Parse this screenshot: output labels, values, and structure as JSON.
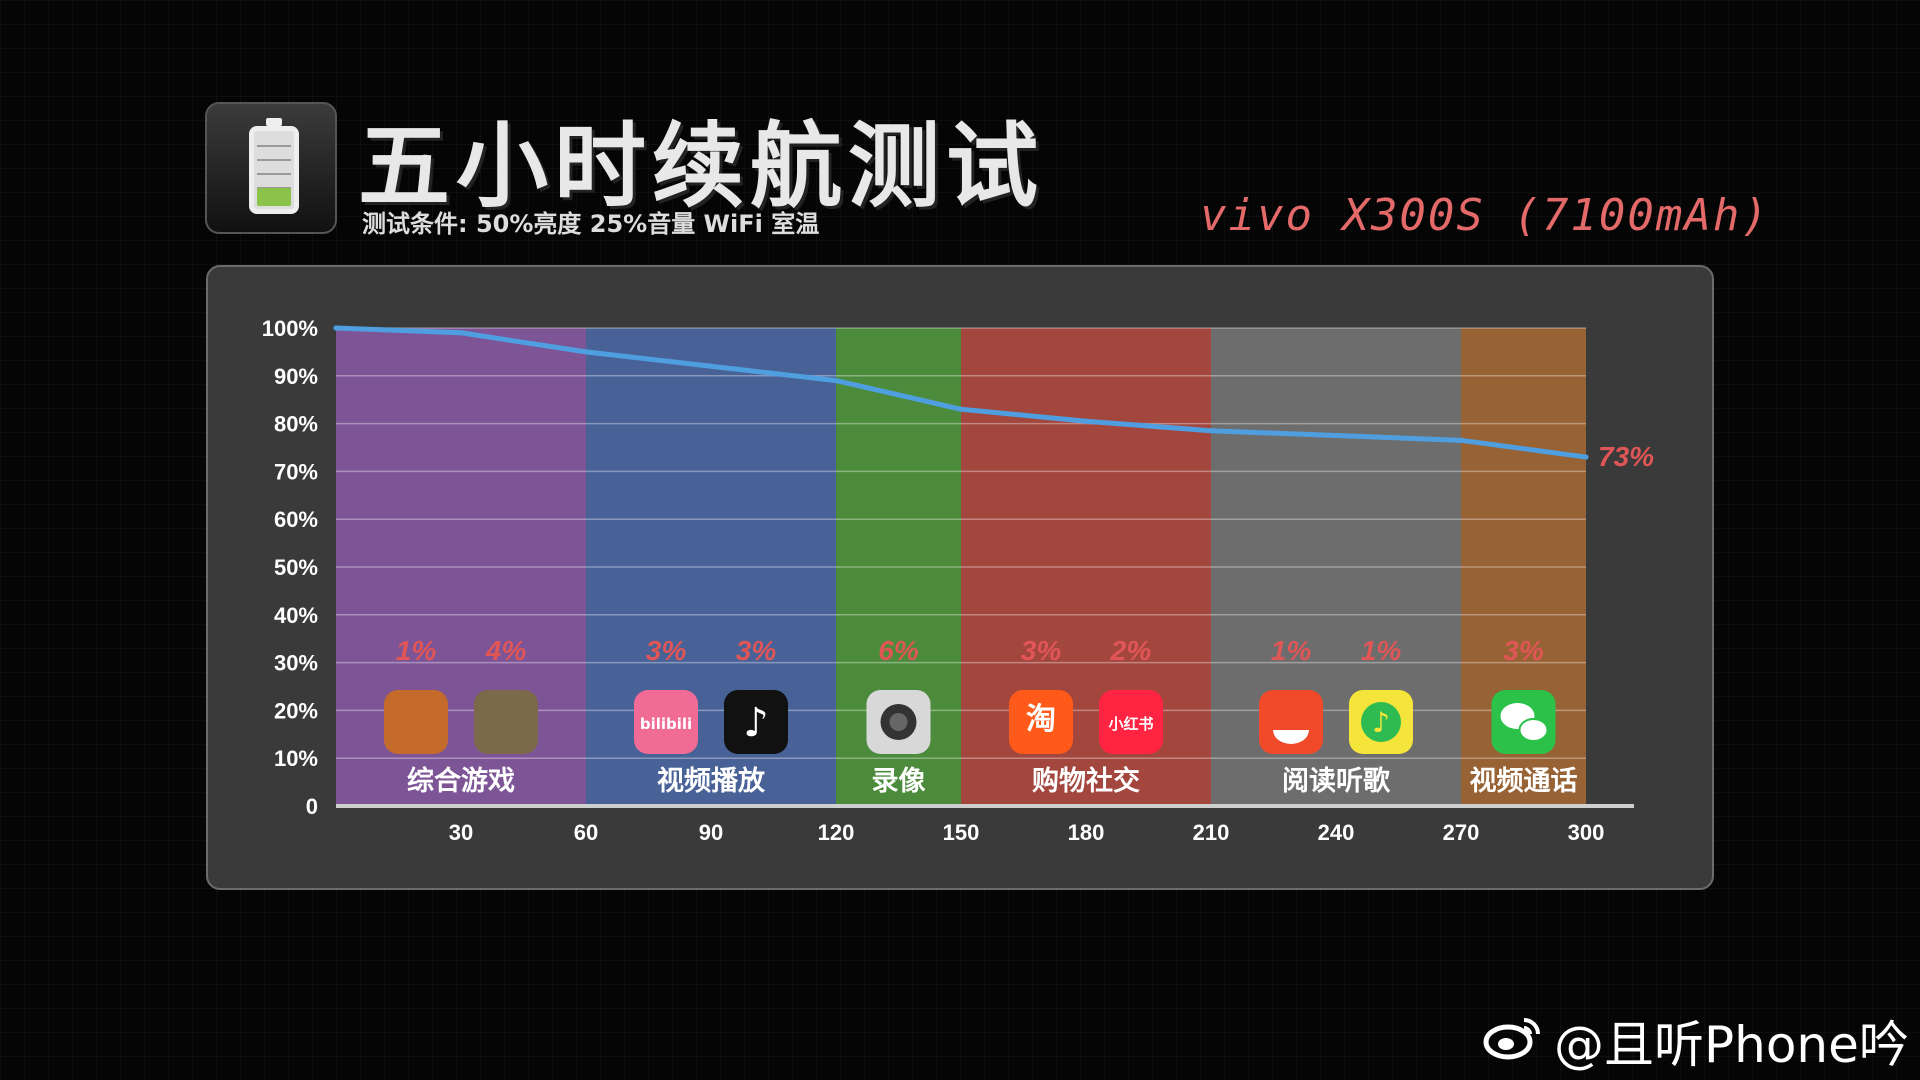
{
  "header": {
    "title": "五小时续航测试",
    "conditions": "测试条件: 50%亮度 25%音量 WiFi 室温",
    "device": "vivo X300S (7100mAh)"
  },
  "watermark": {
    "handle": "@且听Phone吟",
    "icon": "weibo-icon"
  },
  "colors": {
    "line": "#4f9ee0",
    "accent": "#e05555",
    "segments": [
      "#8a5aa8",
      "#4b6aa8",
      "#4f9a3c",
      "#b64a40",
      "#777777",
      "#a86a34"
    ]
  },
  "chart_data": {
    "type": "line",
    "x": [
      0,
      30,
      60,
      90,
      120,
      150,
      180,
      210,
      240,
      270,
      300
    ],
    "series": [
      {
        "values": [
          100,
          99,
          95,
          92,
          89,
          83,
          80.5,
          78.5,
          77.5,
          76.5,
          73
        ]
      }
    ],
    "end_label": "73%",
    "xticks": [
      30,
      60,
      90,
      120,
      150,
      180,
      210,
      240,
      270,
      300
    ],
    "yticks": [
      "0",
      "10%",
      "20%",
      "30%",
      "40%",
      "50%",
      "60%",
      "70%",
      "80%",
      "90%",
      "100%"
    ],
    "xlim": [
      0,
      300
    ],
    "ylim": [
      0,
      100
    ],
    "grid": true,
    "segments": [
      {
        "label": "综合游戏",
        "x0": 0,
        "x1": 60,
        "apps": [
          {
            "icon": "honor-of-kings-icon",
            "drain": "1%"
          },
          {
            "icon": "pubg-icon",
            "drain": "4%"
          }
        ]
      },
      {
        "label": "视频播放",
        "x0": 60,
        "x1": 120,
        "apps": [
          {
            "icon": "bilibili-icon",
            "drain": "3%"
          },
          {
            "icon": "douyin-icon",
            "drain": "3%"
          }
        ]
      },
      {
        "label": "录像",
        "x0": 120,
        "x1": 150,
        "apps": [
          {
            "icon": "camera-icon",
            "drain": "6%"
          }
        ]
      },
      {
        "label": "购物社交",
        "x0": 150,
        "x1": 210,
        "apps": [
          {
            "icon": "taobao-icon",
            "drain": "3%"
          },
          {
            "icon": "xiaohongshu-icon",
            "drain": "2%"
          }
        ]
      },
      {
        "label": "阅读听歌",
        "x0": 210,
        "x1": 270,
        "apps": [
          {
            "icon": "fanqie-reader-icon",
            "drain": "1%"
          },
          {
            "icon": "qq-music-icon",
            "drain": "1%"
          }
        ]
      },
      {
        "label": "视频通话",
        "x0": 270,
        "x1": 300,
        "apps": [
          {
            "icon": "wechat-icon",
            "drain": "3%"
          }
        ]
      }
    ],
    "app_icon_text": {
      "taobao-icon": "淘",
      "xiaohongshu-icon": "小红书",
      "bilibili-icon": "bilibili"
    }
  }
}
